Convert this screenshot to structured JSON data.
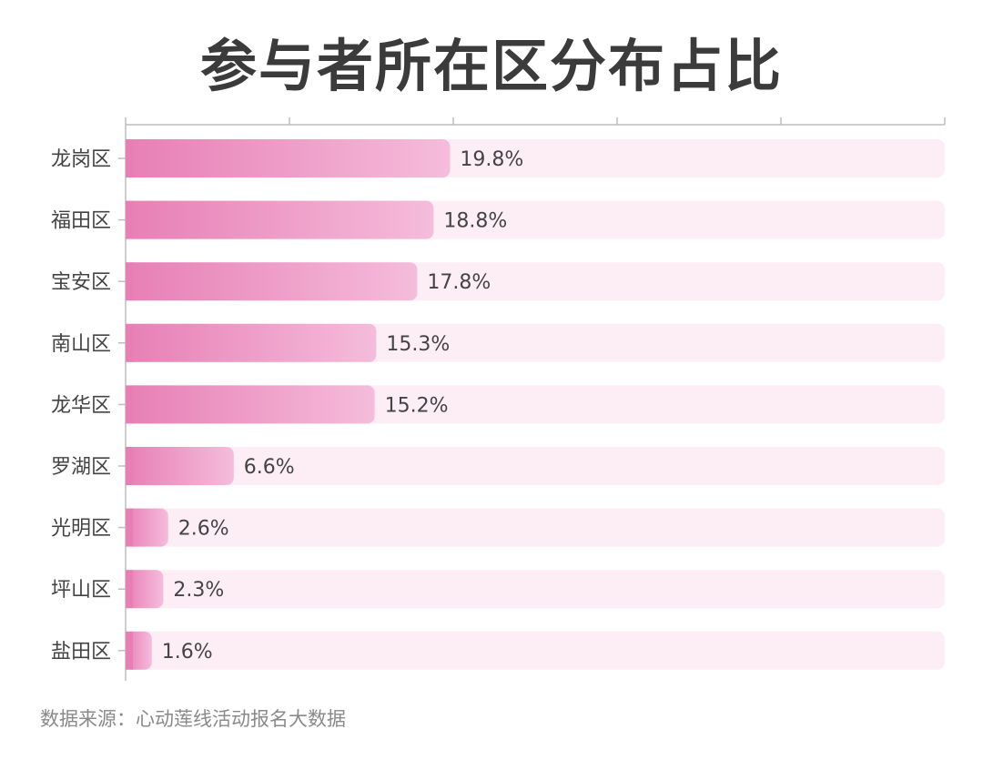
{
  "chart_data": {
    "type": "bar",
    "orientation": "horizontal",
    "title": "参与者所在区分布占比",
    "categories": [
      "龙岗区",
      "福田区",
      "宝安区",
      "南山区",
      "龙华区",
      "罗湖区",
      "光明区",
      "坪山区",
      "盐田区"
    ],
    "values": [
      19.8,
      18.8,
      17.8,
      15.3,
      15.2,
      6.6,
      2.6,
      2.3,
      1.6
    ],
    "value_labels": [
      "19.8%",
      "18.8%",
      "17.8%",
      "15.3%",
      "15.2%",
      "6.6%",
      "2.6%",
      "2.3%",
      "1.6%"
    ],
    "unit": "%",
    "xlim": [
      0,
      50
    ],
    "x_ticks": [
      0,
      10,
      20,
      30,
      40,
      50
    ],
    "grid": false,
    "legend": "none",
    "colors": {
      "bar_start": "#e77fb5",
      "bar_end": "#f5bcdb",
      "track": "#fdeef5",
      "axis": "#bdbdbd",
      "label": "#444444",
      "title": "#3b3b3b",
      "source": "#8a8a8a"
    }
  },
  "source": "数据来源：心动莲线活动报名大数据"
}
